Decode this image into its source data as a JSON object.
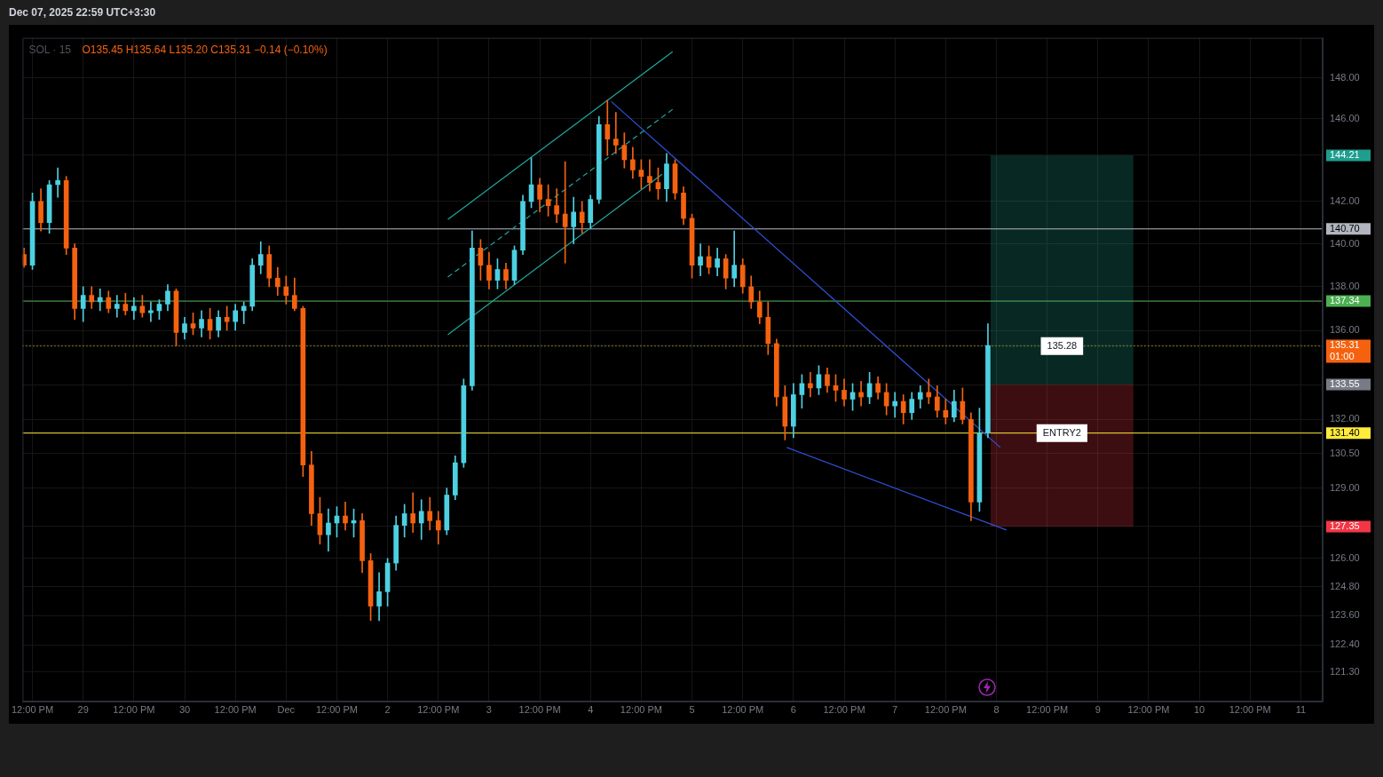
{
  "chart_data": {
    "type": "candlestick",
    "title": "SOL · 15",
    "subtitle": "O135.45 H135.64 L135.20 C135.31 −0.14 (−0.10%)",
    "annotations": [
      "Dec 07, 2025 22:59 UTC+3:30",
      "01:00"
    ],
    "x": [
      "2025-11-28T10:00",
      "2025-11-28T12:00",
      "2025-11-28T14:00",
      "2025-11-28T16:00",
      "2025-11-28T18:00",
      "2025-11-28T20:00",
      "2025-11-28T22:00",
      "2025-11-29T00:00",
      "2025-11-29T02:00",
      "2025-11-29T04:00",
      "2025-11-29T06:00",
      "2025-11-29T08:00",
      "2025-11-29T10:00",
      "2025-11-29T12:00",
      "2025-11-29T14:00",
      "2025-11-29T16:00",
      "2025-11-29T18:00",
      "2025-11-29T20:00",
      "2025-11-29T22:00",
      "2025-11-30T00:00",
      "2025-11-30T02:00",
      "2025-11-30T04:00",
      "2025-11-30T06:00",
      "2025-11-30T08:00",
      "2025-11-30T10:00",
      "2025-11-30T12:00",
      "2025-11-30T14:00",
      "2025-11-30T16:00",
      "2025-11-30T18:00",
      "2025-11-30T20:00",
      "2025-11-30T22:00",
      "2025-12-01T00:00",
      "2025-12-01T02:00",
      "2025-12-01T04:00",
      "2025-12-01T06:00",
      "2025-12-01T08:00",
      "2025-12-01T10:00",
      "2025-12-01T12:00",
      "2025-12-01T14:00",
      "2025-12-01T16:00",
      "2025-12-01T18:00",
      "2025-12-01T20:00",
      "2025-12-01T22:00",
      "2025-12-02T00:00",
      "2025-12-02T02:00",
      "2025-12-02T04:00",
      "2025-12-02T06:00",
      "2025-12-02T08:00",
      "2025-12-02T10:00",
      "2025-12-02T12:00",
      "2025-12-02T14:00",
      "2025-12-02T16:00",
      "2025-12-02T18:00",
      "2025-12-02T20:00",
      "2025-12-02T22:00",
      "2025-12-03T00:00",
      "2025-12-03T02:00",
      "2025-12-03T04:00",
      "2025-12-03T06:00",
      "2025-12-03T08:00",
      "2025-12-03T10:00",
      "2025-12-03T12:00",
      "2025-12-03T14:00",
      "2025-12-03T16:00",
      "2025-12-03T18:00",
      "2025-12-03T20:00",
      "2025-12-03T22:00",
      "2025-12-04T00:00",
      "2025-12-04T02:00",
      "2025-12-04T04:00",
      "2025-12-04T06:00",
      "2025-12-04T08:00",
      "2025-12-04T10:00",
      "2025-12-04T12:00",
      "2025-12-04T14:00",
      "2025-12-04T16:00",
      "2025-12-04T18:00",
      "2025-12-04T20:00",
      "2025-12-04T22:00",
      "2025-12-05T00:00",
      "2025-12-05T02:00",
      "2025-12-05T04:00",
      "2025-12-05T06:00",
      "2025-12-05T08:00",
      "2025-12-05T10:00",
      "2025-12-05T12:00",
      "2025-12-05T14:00",
      "2025-12-05T16:00",
      "2025-12-05T18:00",
      "2025-12-05T20:00",
      "2025-12-05T22:00",
      "2025-12-06T00:00",
      "2025-12-06T02:00",
      "2025-12-06T04:00",
      "2025-12-06T06:00",
      "2025-12-06T08:00",
      "2025-12-06T10:00",
      "2025-12-06T12:00",
      "2025-12-06T14:00",
      "2025-12-06T16:00",
      "2025-12-06T18:00",
      "2025-12-06T20:00",
      "2025-12-06T22:00",
      "2025-12-07T00:00",
      "2025-12-07T02:00",
      "2025-12-07T04:00",
      "2025-12-07T06:00",
      "2025-12-07T08:00",
      "2025-12-07T10:00",
      "2025-12-07T12:00",
      "2025-12-07T14:00",
      "2025-12-07T16:00",
      "2025-12-07T18:00",
      "2025-12-07T20:00",
      "2025-12-07T22:00"
    ],
    "ohlc": [
      [
        139.5,
        139.8,
        138.9,
        139.0
      ],
      [
        139.0,
        142.4,
        138.8,
        142.0
      ],
      [
        142.0,
        142.6,
        140.6,
        141.0
      ],
      [
        141.0,
        143.0,
        140.5,
        142.8
      ],
      [
        142.8,
        143.6,
        142.2,
        143.0
      ],
      [
        143.0,
        143.2,
        139.5,
        139.8
      ],
      [
        139.8,
        140.0,
        136.5,
        137.0
      ],
      [
        137.0,
        138.0,
        136.4,
        137.6
      ],
      [
        137.6,
        138.0,
        137.0,
        137.3
      ],
      [
        137.3,
        137.9,
        136.9,
        137.5
      ],
      [
        137.5,
        137.8,
        136.8,
        137.0
      ],
      [
        137.0,
        137.6,
        136.6,
        137.2
      ],
      [
        137.2,
        137.7,
        136.7,
        136.9
      ],
      [
        136.9,
        137.5,
        136.5,
        137.1
      ],
      [
        137.1,
        137.6,
        136.6,
        136.8
      ],
      [
        136.8,
        137.3,
        136.4,
        136.9
      ],
      [
        136.9,
        137.4,
        136.5,
        137.2
      ],
      [
        137.2,
        138.1,
        136.9,
        137.8
      ],
      [
        137.8,
        137.9,
        135.3,
        135.9
      ],
      [
        135.9,
        136.6,
        135.6,
        136.3
      ],
      [
        136.3,
        136.8,
        135.8,
        136.1
      ],
      [
        136.1,
        136.9,
        135.7,
        136.5
      ],
      [
        136.5,
        137.0,
        135.6,
        136.0
      ],
      [
        136.0,
        136.9,
        135.7,
        136.6
      ],
      [
        136.6,
        137.1,
        136.0,
        136.4
      ],
      [
        136.4,
        137.2,
        136.0,
        136.9
      ],
      [
        136.9,
        137.3,
        136.3,
        137.1
      ],
      [
        137.1,
        139.3,
        136.9,
        139.0
      ],
      [
        139.0,
        140.1,
        138.6,
        139.5
      ],
      [
        139.5,
        139.9,
        138.0,
        138.4
      ],
      [
        138.4,
        138.9,
        137.6,
        138.0
      ],
      [
        138.0,
        138.5,
        137.2,
        137.6
      ],
      [
        137.6,
        138.4,
        136.9,
        137.0
      ],
      [
        137.0,
        137.1,
        129.5,
        130.0
      ],
      [
        130.0,
        130.6,
        127.4,
        127.9
      ],
      [
        127.9,
        128.6,
        126.6,
        127.0
      ],
      [
        127.0,
        128.1,
        126.3,
        127.5
      ],
      [
        127.5,
        128.2,
        126.9,
        127.8
      ],
      [
        127.8,
        128.4,
        127.2,
        127.5
      ],
      [
        127.5,
        128.1,
        126.9,
        127.6
      ],
      [
        127.6,
        127.9,
        125.4,
        125.9
      ],
      [
        125.9,
        126.2,
        123.4,
        124.0
      ],
      [
        124.0,
        125.4,
        123.4,
        124.6
      ],
      [
        124.6,
        126.0,
        124.0,
        125.8
      ],
      [
        125.8,
        127.8,
        125.5,
        127.4
      ],
      [
        127.4,
        128.3,
        126.9,
        127.9
      ],
      [
        127.9,
        128.8,
        127.1,
        127.5
      ],
      [
        127.5,
        128.5,
        126.8,
        128.0
      ],
      [
        128.0,
        128.6,
        127.2,
        127.6
      ],
      [
        127.6,
        128.0,
        126.6,
        127.2
      ],
      [
        127.2,
        129.0,
        127.0,
        128.7
      ],
      [
        128.7,
        130.4,
        128.5,
        130.1
      ],
      [
        130.1,
        133.8,
        129.9,
        133.5
      ],
      [
        133.5,
        140.6,
        133.3,
        139.8
      ],
      [
        139.8,
        140.2,
        138.3,
        139.0
      ],
      [
        139.0,
        139.6,
        137.9,
        138.3
      ],
      [
        138.3,
        139.3,
        137.9,
        138.8
      ],
      [
        138.8,
        139.1,
        137.9,
        138.3
      ],
      [
        138.3,
        139.9,
        138.1,
        139.7
      ],
      [
        139.7,
        142.3,
        139.5,
        142.0
      ],
      [
        142.0,
        144.1,
        141.7,
        142.8
      ],
      [
        142.8,
        143.1,
        141.5,
        142.1
      ],
      [
        142.1,
        142.8,
        141.3,
        141.8
      ],
      [
        141.8,
        142.6,
        141.0,
        141.4
      ],
      [
        141.4,
        143.9,
        139.1,
        140.8
      ],
      [
        140.8,
        142.2,
        140.0,
        141.5
      ],
      [
        141.5,
        142.0,
        140.5,
        141.0
      ],
      [
        141.0,
        142.3,
        140.7,
        142.1
      ],
      [
        142.1,
        146.1,
        141.9,
        145.7
      ],
      [
        145.7,
        146.9,
        144.2,
        145.0
      ],
      [
        145.0,
        146.3,
        144.3,
        144.7
      ],
      [
        144.7,
        145.3,
        143.6,
        144.0
      ],
      [
        144.0,
        144.6,
        143.1,
        143.5
      ],
      [
        143.5,
        144.0,
        142.6,
        143.2
      ],
      [
        143.2,
        144.0,
        142.5,
        142.9
      ],
      [
        142.9,
        143.6,
        142.1,
        142.6
      ],
      [
        142.6,
        144.3,
        142.0,
        143.8
      ],
      [
        143.8,
        144.0,
        142.1,
        142.4
      ],
      [
        142.4,
        142.7,
        140.9,
        141.2
      ],
      [
        141.2,
        141.4,
        138.4,
        139.0
      ],
      [
        139.0,
        140.0,
        138.5,
        139.4
      ],
      [
        139.4,
        139.9,
        138.6,
        138.9
      ],
      [
        138.9,
        139.8,
        138.5,
        139.3
      ],
      [
        139.3,
        139.5,
        137.9,
        138.4
      ],
      [
        138.4,
        140.6,
        138.0,
        139.0
      ],
      [
        139.0,
        139.3,
        137.7,
        138.0
      ],
      [
        138.0,
        138.5,
        137.0,
        137.3
      ],
      [
        137.3,
        137.8,
        136.3,
        136.6
      ],
      [
        136.6,
        137.3,
        134.9,
        135.4
      ],
      [
        135.4,
        135.6,
        132.6,
        133.0
      ],
      [
        133.0,
        133.5,
        131.1,
        131.7
      ],
      [
        131.7,
        133.6,
        131.2,
        133.1
      ],
      [
        133.1,
        134.0,
        132.5,
        133.6
      ],
      [
        133.6,
        134.1,
        133.0,
        133.4
      ],
      [
        133.4,
        134.4,
        133.1,
        134.0
      ],
      [
        134.0,
        134.3,
        133.2,
        133.5
      ],
      [
        133.5,
        134.0,
        132.8,
        133.3
      ],
      [
        133.3,
        133.8,
        132.6,
        132.9
      ],
      [
        132.9,
        133.6,
        132.4,
        133.2
      ],
      [
        133.2,
        133.7,
        132.6,
        133.0
      ],
      [
        133.0,
        134.1,
        132.7,
        133.6
      ],
      [
        133.6,
        133.9,
        132.9,
        133.2
      ],
      [
        133.2,
        133.6,
        132.2,
        132.6
      ],
      [
        132.6,
        133.2,
        132.1,
        132.8
      ],
      [
        132.8,
        133.1,
        131.8,
        132.3
      ],
      [
        132.3,
        133.2,
        132.0,
        132.9
      ],
      [
        132.9,
        133.5,
        132.5,
        133.2
      ],
      [
        133.2,
        133.8,
        132.7,
        133.0
      ],
      [
        133.0,
        133.5,
        132.1,
        132.4
      ],
      [
        132.4,
        132.9,
        131.8,
        132.1
      ],
      [
        132.1,
        133.3,
        131.9,
        132.8
      ],
      [
        132.8,
        133.4,
        131.8,
        132.0
      ],
      [
        132.0,
        132.3,
        127.6,
        128.4
      ],
      [
        128.4,
        132.5,
        128.0,
        131.4
      ],
      [
        131.4,
        136.3,
        131.2,
        135.31
      ]
    ],
    "colors": [
      "#f5620f",
      "#4dd0e1",
      "#f5620f",
      "#4dd0e1",
      "#4dd0e1",
      "#f5620f",
      "#f5620f",
      "#4dd0e1",
      "#f5620f",
      "#4dd0e1",
      "#f5620f",
      "#4dd0e1",
      "#f5620f",
      "#4dd0e1",
      "#f5620f",
      "#4dd0e1",
      "#4dd0e1",
      "#4dd0e1",
      "#f5620f",
      "#4dd0e1",
      "#f5620f",
      "#4dd0e1",
      "#f5620f",
      "#4dd0e1",
      "#f5620f",
      "#4dd0e1",
      "#4dd0e1",
      "#4dd0e1",
      "#4dd0e1",
      "#f5620f",
      "#f5620f",
      "#f5620f",
      "#f5620f",
      "#f5620f",
      "#f5620f",
      "#f5620f",
      "#4dd0e1",
      "#4dd0e1",
      "#f5620f",
      "#4dd0e1",
      "#f5620f",
      "#f5620f",
      "#4dd0e1",
      "#4dd0e1",
      "#4dd0e1",
      "#4dd0e1",
      "#f5620f",
      "#4dd0e1",
      "#f5620f",
      "#f5620f",
      "#4dd0e1",
      "#4dd0e1",
      "#4dd0e1",
      "#4dd0e1",
      "#f5620f",
      "#f5620f",
      "#4dd0e1",
      "#f5620f",
      "#4dd0e1",
      "#4dd0e1",
      "#4dd0e1",
      "#f5620f",
      "#f5620f",
      "#f5620f",
      "#f5620f",
      "#4dd0e1",
      "#f5620f",
      "#4dd0e1",
      "#4dd0e1",
      "#f5620f",
      "#f5620f",
      "#f5620f",
      "#f5620f",
      "#f5620f",
      "#f5620f",
      "#f5620f",
      "#4dd0e1",
      "#f5620f",
      "#f5620f",
      "#f5620f",
      "#4dd0e1",
      "#f5620f",
      "#4dd0e1",
      "#f5620f",
      "#4dd0e1",
      "#f5620f",
      "#f5620f",
      "#f5620f",
      "#f5620f",
      "#f5620f",
      "#f5620f",
      "#4dd0e1",
      "#4dd0e1",
      "#f5620f",
      "#4dd0e1",
      "#f5620f",
      "#f5620f",
      "#f5620f",
      "#4dd0e1",
      "#f5620f",
      "#4dd0e1",
      "#f5620f",
      "#f5620f",
      "#4dd0e1",
      "#f5620f",
      "#4dd0e1",
      "#4dd0e1",
      "#f5620f",
      "#f5620f",
      "#f5620f",
      "#4dd0e1",
      "#f5620f",
      "#f5620f",
      "#4dd0e1",
      "#4dd0e1"
    ],
    "series": [
      {
        "type": "line",
        "color": "#1fa8a0",
        "x": [
          "2025-12-02T14:15",
          "2025-12-04T19:25"
        ],
        "values": [
          141.15,
          149.3
        ]
      },
      {
        "type": "line",
        "color": "#1fa8a0",
        "line_style": "dashed",
        "x": [
          "2025-12-02T14:15",
          "2025-12-04T19:25"
        ],
        "values": [
          138.45,
          146.45
        ]
      },
      {
        "type": "line",
        "color": "#1fa8a0",
        "x": [
          "2025-12-02T14:15",
          "2025-12-04T16:55"
        ],
        "values": [
          135.8,
          143.3
        ]
      },
      {
        "type": "line",
        "color": "#2f50d8",
        "x": [
          "2025-12-04T04:55",
          "2025-12-08T00:55"
        ],
        "values": [
          146.83,
          130.77
        ]
      },
      {
        "type": "line",
        "color": "#2f50d8",
        "x": [
          "2025-12-05T22:25",
          "2025-12-08T02:25"
        ],
        "values": [
          130.77,
          127.2
        ]
      }
    ],
    "ref_lines": [
      {
        "axis": "y",
        "value": 140.7,
        "color": "#b2b5be",
        "label": null
      },
      {
        "axis": "y",
        "value": 137.34,
        "color": "#4caf50",
        "label": null
      },
      {
        "axis": "y",
        "value": 135.31,
        "color": "#f5620f",
        "line_style": "dotted",
        "label": null
      },
      {
        "axis": "y",
        "value": 135.28,
        "color": "#4caf50",
        "line_style": "dotted",
        "label": "135.28"
      },
      {
        "axis": "y",
        "value": 131.4,
        "color": "#ffeb3b",
        "label": "ENTRY2"
      }
    ],
    "bands": [
      {
        "axis": "y",
        "from": 133.55,
        "to": 144.21,
        "color": "#1e9e8e"
      },
      {
        "axis": "y",
        "from": 127.35,
        "to": 133.55,
        "color": "#f23645"
      }
    ],
    "xlim": [
      "2025-11-28T09:40",
      "2025-12-11T05:10"
    ],
    "xticks": [
      {
        "value": "2025-11-28T12:00",
        "label": "12:00 PM"
      },
      {
        "value": "2025-11-29",
        "label": "29"
      },
      {
        "value": "2025-11-29T12:00",
        "label": "12:00 PM"
      },
      {
        "value": "2025-11-30",
        "label": "30"
      },
      {
        "value": "2025-11-30T12:00",
        "label": "12:00 PM"
      },
      {
        "value": "2025-12-01",
        "label": "Dec"
      },
      {
        "value": "2025-12-01T12:00",
        "label": "12:00 PM"
      },
      {
        "value": "2025-12-02",
        "label": "2"
      },
      {
        "value": "2025-12-02T12:00",
        "label": "12:00 PM"
      },
      {
        "value": "2025-12-03",
        "label": "3"
      },
      {
        "value": "2025-12-03T12:00",
        "label": "12:00 PM"
      },
      {
        "value": "2025-12-04",
        "label": "4"
      },
      {
        "value": "2025-12-04T12:00",
        "label": "12:00 PM"
      },
      {
        "value": "2025-12-05",
        "label": "5"
      },
      {
        "value": "2025-12-05T12:00",
        "label": "12:00 PM"
      },
      {
        "value": "2025-12-06",
        "label": "6"
      },
      {
        "value": "2025-12-06T12:00",
        "label": "12:00 PM"
      },
      {
        "value": "2025-12-07",
        "label": "7"
      },
      {
        "value": "2025-12-07T12:00",
        "label": "12:00 PM"
      },
      {
        "value": "2025-12-08",
        "label": "8"
      },
      {
        "value": "2025-12-08T12:00",
        "label": "12:00 PM"
      },
      {
        "value": "2025-12-09",
        "label": "9"
      },
      {
        "value": "2025-12-09T12:00",
        "label": "12:00 PM"
      },
      {
        "value": "2025-12-10",
        "label": "10"
      },
      {
        "value": "2025-12-10T12:00",
        "label": "12:00 PM"
      },
      {
        "value": "2025-12-11",
        "label": "11"
      }
    ],
    "ylim": [
      120.1,
      150.0
    ],
    "yticks": [
      {
        "value": 148,
        "label": "148.00"
      },
      {
        "value": 146,
        "label": "146.00"
      },
      {
        "value": 144.21,
        "label": "144.21"
      },
      {
        "value": 142,
        "label": "142.00"
      },
      {
        "value": 140.7,
        "label": "140.70"
      },
      {
        "value": 140,
        "label": "140.00"
      },
      {
        "value": 137.34,
        "label": "137.34"
      },
      {
        "value": 138,
        "label": "138.00"
      },
      {
        "value": 136,
        "label": "136.00"
      },
      {
        "value": 135.31,
        "label": "135.31"
      },
      {
        "value": 133.55,
        "label": "133.55"
      },
      {
        "value": 132,
        "label": "132.00"
      },
      {
        "value": 131.4,
        "label": "131.40"
      },
      {
        "value": 130.5,
        "label": "130.50"
      },
      {
        "value": 129,
        "label": "129.00"
      },
      {
        "value": 127.35,
        "label": "127.35"
      },
      {
        "value": 126,
        "label": "126.00"
      },
      {
        "value": 124.8,
        "label": "124.80"
      },
      {
        "value": 123.6,
        "label": "123.60"
      },
      {
        "value": 122.4,
        "label": "122.40"
      },
      {
        "value": 121.3,
        "label": "121.30"
      }
    ],
    "log": true,
    "grid": true,
    "legend": false
  }
}
